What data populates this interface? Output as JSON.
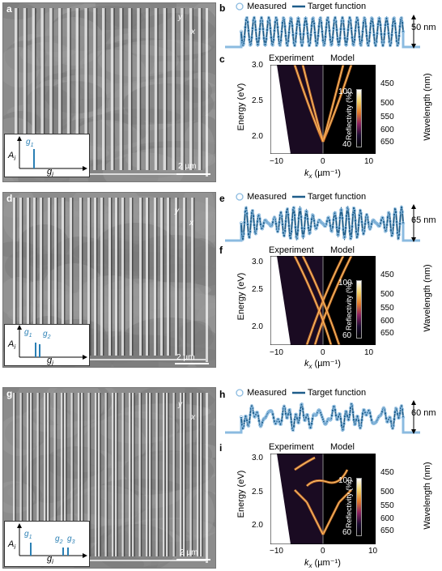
{
  "panels": {
    "a": "a",
    "b": "b",
    "c": "c",
    "d": "d",
    "e": "e",
    "f": "f",
    "g": "g",
    "h": "h",
    "i": "i"
  },
  "sem": {
    "scale_bar": "2 µm",
    "axis_x": "x",
    "axis_y": "y"
  },
  "inset": {
    "ylabel": "A",
    "ylabel_sub": "i",
    "xlabel": "g",
    "xlabel_sub": "i",
    "row1_peaks": [
      {
        "label": "g",
        "sub": "1"
      }
    ],
    "row2_peaks": [
      {
        "label": "g",
        "sub": "1"
      },
      {
        "label": "g",
        "sub": "2"
      }
    ],
    "row3_peaks": [
      {
        "label": "g",
        "sub": "1"
      },
      {
        "label": "g",
        "sub": "2"
      },
      {
        "label": "g",
        "sub": "3"
      }
    ]
  },
  "profile": {
    "legend_measured": "Measured",
    "legend_target": "Target function",
    "height_1": "50 nm",
    "height_2": "65 nm",
    "height_3": "60 nm"
  },
  "dispersion": {
    "left_label": "Experiment",
    "right_label": "Model",
    "ylabel": "Energy (eV)",
    "xlabel_main": "k",
    "xlabel_sub": "x",
    "xlabel_unit": " (µm⁻¹)",
    "right_axis_label": "Wavelength (nm)",
    "colorbar_label": "Reflectivity (%)",
    "y_ticks": [
      "3.0",
      "2.5",
      "2.0"
    ],
    "y_ticks_2": [
      "3.0",
      "2.5",
      "2.0"
    ],
    "x_ticks_row1": [
      "−10",
      "0",
      "10"
    ],
    "x_ticks_row2": [
      "−10",
      "0",
      "10"
    ],
    "x_ticks_row3": [
      "−10",
      "0",
      "10"
    ],
    "wl_ticks": [
      "450",
      "500",
      "550",
      "600",
      "650"
    ],
    "cbar_row1": {
      "max": "100",
      "min": "40"
    },
    "cbar_row2": {
      "max": "100",
      "min": "60"
    },
    "cbar_row3": {
      "max": "100",
      "min": "60"
    }
  },
  "colors": {
    "accent": "#2a7fb4",
    "marker": "#8bbbe0"
  }
}
